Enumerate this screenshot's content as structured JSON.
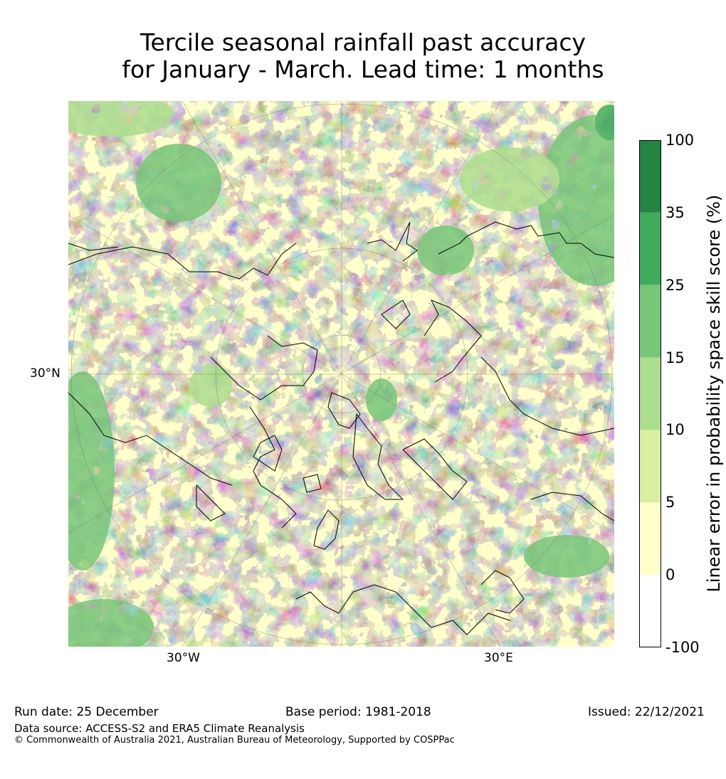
{
  "title": {
    "line1": "Tercile seasonal rainfall past accuracy",
    "line2": "for January - March. Lead time: 1 months"
  },
  "map": {
    "projection": "north-polar-stereographic",
    "lat_label": "30°N",
    "lon_labels": {
      "west": "30°W",
      "east": "30°E"
    }
  },
  "colorbar": {
    "title": "Linear error in probability space skill score (%)",
    "tick_labels": [
      "100",
      "35",
      "25",
      "15",
      "10",
      "5",
      "0",
      "-100"
    ],
    "bins": [
      {
        "from": -100,
        "to": 0,
        "color": "#ffffff"
      },
      {
        "from": 0,
        "to": 5,
        "color": "#ffffcc"
      },
      {
        "from": 5,
        "to": 10,
        "color": "#d9f0a3"
      },
      {
        "from": 10,
        "to": 15,
        "color": "#addd8e"
      },
      {
        "from": 15,
        "to": 25,
        "color": "#78c679"
      },
      {
        "from": 25,
        "to": 35,
        "color": "#41ab5d"
      },
      {
        "from": 35,
        "to": 100,
        "color": "#238443"
      }
    ]
  },
  "footer": {
    "run_date": "Run date: 25 December",
    "base_period": "Base period: 1981-2018",
    "issued": "Issued: 22/12/2021",
    "data_source": "Data source: ACCESS-S2 and ERA5 Climate Reanalysis",
    "copyright": "© Commonwealth of Australia 2021, Australian Bureau of Meteorology, Supported by COSPPac"
  }
}
